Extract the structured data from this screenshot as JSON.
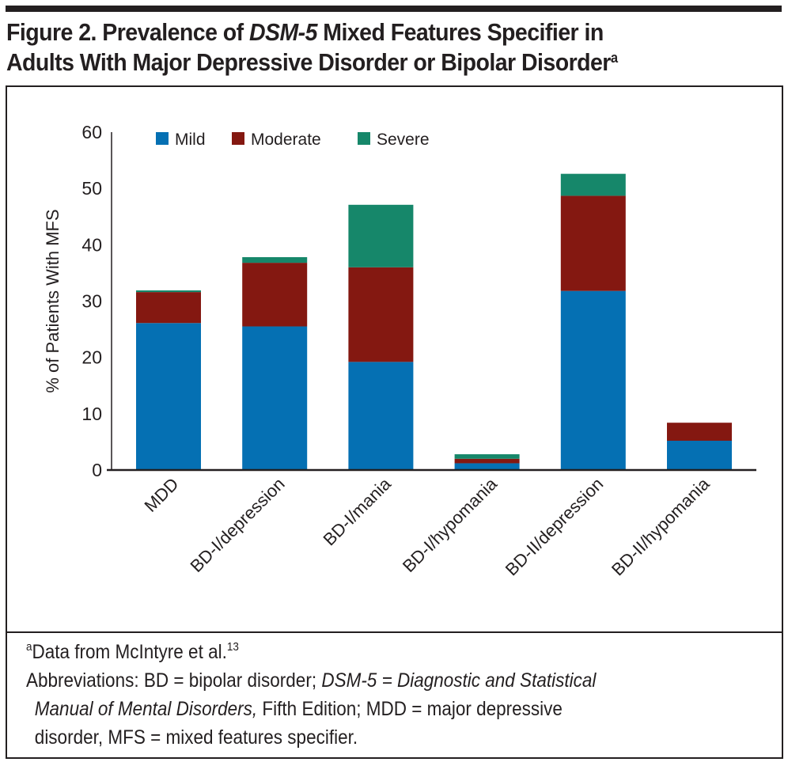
{
  "figure": {
    "label": "Figure 2.",
    "title_pre": "Prevalence of ",
    "title_italic": "DSM-5",
    "title_post_line1": " Mixed Features Specifier in",
    "title_line2": "Adults With Major Depressive Disorder or Bipolar Disorder",
    "title_superscript": "a"
  },
  "chart_data": {
    "type": "bar",
    "stacked": true,
    "title": "Prevalence of DSM-5 Mixed Features Specifier in Adults With Major Depressive Disorder or Bipolar Disorder",
    "xlabel": "",
    "ylabel": "% of Patients With MFS",
    "ylim": [
      0,
      60
    ],
    "yticks": [
      0,
      10,
      20,
      30,
      40,
      50,
      60
    ],
    "grid": false,
    "legend_position": "top",
    "categories": [
      "MDD",
      "BD-I/depression",
      "BD-I/mania",
      "BD-I/hypomania",
      "BD-II/depression",
      "BD-II/hypomania"
    ],
    "series": [
      {
        "name": "Mild",
        "color": "#0570b3",
        "values": [
          26.1,
          25.5,
          19.2,
          1.2,
          31.8,
          5.2
        ]
      },
      {
        "name": "Moderate",
        "color": "#841811",
        "values": [
          5.5,
          11.3,
          16.8,
          0.8,
          16.9,
          3.2
        ]
      },
      {
        "name": "Severe",
        "color": "#16876a",
        "values": [
          0.3,
          1.0,
          11.1,
          0.8,
          3.9,
          0.0
        ]
      }
    ]
  },
  "footnotes": {
    "source_marker": "a",
    "source_text": "Data from McIntyre et al.",
    "source_ref": "13",
    "abbrev_label": "Abbreviations: BD = bipolar disorder; ",
    "abbrev_dsm": "DSM-5 = Diagnostic and Statistical",
    "abbrev_manual": "Manual of Mental Disorders,",
    "abbrev_rest_line2": " Fifth Edition; MDD = major depressive",
    "abbrev_line3": "disorder, MFS = mixed features specifier."
  }
}
